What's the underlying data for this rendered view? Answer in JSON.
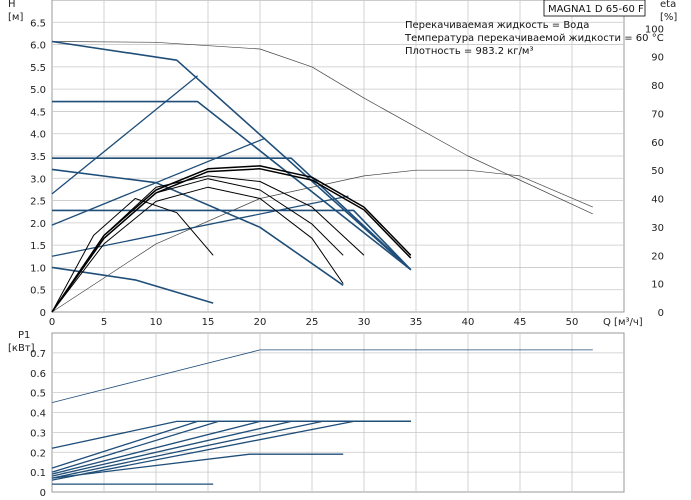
{
  "chart_data": [
    {
      "type": "line",
      "model_label": "MAGNA1 D 65-60 F",
      "info": [
        "Перекачиваемая жидкость = Вода",
        "Температура перекачиваемой жидкости = 60 °C",
        "Плотность = 983.2 кг/м³"
      ],
      "ylabel": "H",
      "yunit": "[м]",
      "y2label": "eta",
      "y2unit": "[%]",
      "xlabel": "Q [м³/ч]",
      "xlim": [
        0,
        55
      ],
      "ylim": [
        0,
        7.0
      ],
      "y2lim": [
        0,
        110
      ],
      "xticks": [
        "0",
        "5",
        "10",
        "15",
        "20",
        "25",
        "30",
        "35",
        "40",
        "45",
        "50"
      ],
      "yticks": [
        "0",
        "0.5",
        "1.0",
        "1.5",
        "2.0",
        "2.5",
        "3.0",
        "3.5",
        "4.0",
        "4.5",
        "5.0",
        "5.5",
        "6.0",
        "6.5"
      ],
      "y2ticks": [
        "0",
        "10",
        "20",
        "30",
        "40",
        "50",
        "60",
        "70",
        "80",
        "90",
        "100"
      ],
      "grid": true,
      "pump_curves": [
        {
          "x": [
            0,
            12,
            34.5
          ],
          "y": [
            6.07,
            5.65,
            0.95
          ]
        },
        {
          "x": [
            0,
            14,
            34.5
          ],
          "y": [
            4.72,
            4.72,
            0.95
          ]
        },
        {
          "x": [
            0,
            23,
            34.5
          ],
          "y": [
            3.45,
            3.45,
            0.95
          ]
        },
        {
          "x": [
            0,
            29,
            34.5
          ],
          "y": [
            2.28,
            2.28,
            0.95
          ]
        },
        {
          "x": [
            0,
            10,
            20,
            28
          ],
          "y": [
            3.2,
            2.9,
            1.9,
            0.6
          ]
        },
        {
          "x": [
            0,
            8,
            15.5
          ],
          "y": [
            1.0,
            0.72,
            0.2
          ]
        }
      ],
      "system_curves": [
        {
          "x": [
            0,
            14
          ],
          "y": [
            2.65,
            5.3
          ]
        },
        {
          "x": [
            0,
            20.5
          ],
          "y": [
            1.95,
            3.9
          ]
        },
        {
          "x": [
            0,
            28.5
          ],
          "y": [
            1.25,
            2.6
          ]
        }
      ],
      "eta_curves": [
        {
          "x": [
            0,
            5,
            10,
            15,
            20,
            25,
            30,
            34.5
          ],
          "y": [
            0,
            27,
            43,
            50.5,
            51.5,
            47.5,
            37,
            20
          ]
        },
        {
          "x": [
            0,
            5,
            10,
            15,
            20,
            25,
            30,
            34.5
          ],
          "y": [
            0,
            26,
            42,
            49.5,
            50.5,
            46.5,
            36,
            19
          ]
        },
        {
          "x": [
            0,
            5,
            10,
            15,
            20,
            25,
            30
          ],
          "y": [
            0,
            27,
            44,
            48,
            46,
            37,
            20
          ]
        },
        {
          "x": [
            0,
            5,
            10,
            15,
            20,
            25,
            28
          ],
          "y": [
            0,
            26,
            42,
            47,
            43,
            31,
            20
          ]
        },
        {
          "x": [
            0,
            5,
            10,
            15,
            20,
            25,
            28
          ],
          "y": [
            0,
            24,
            39,
            44,
            40,
            26,
            10
          ]
        },
        {
          "x": [
            0,
            4,
            8,
            12,
            15.5
          ],
          "y": [
            0,
            27,
            40,
            35,
            20
          ]
        }
      ],
      "max_head_thin": {
        "x": [
          0,
          10,
          20,
          25,
          30,
          40,
          52
        ],
        "y": [
          6.07,
          6.05,
          5.9,
          5.5,
          4.8,
          3.5,
          2.2
        ]
      },
      "max_eta_thin": {
        "x": [
          0,
          10,
          20,
          30,
          35,
          40,
          45,
          52
        ],
        "y": [
          0,
          24,
          40,
          48,
          50,
          50,
          48,
          37
        ]
      }
    },
    {
      "type": "line",
      "ylabel": "P1",
      "yunit": "[кВт]",
      "ylim": [
        0,
        0.8
      ],
      "yticks": [
        "0",
        "0.1",
        "0.2",
        "0.3",
        "0.4",
        "0.5",
        "0.6",
        "0.7"
      ],
      "xlim": [
        0,
        55
      ],
      "grid": true,
      "power_curves": [
        {
          "x": [
            0,
            12,
            34.5
          ],
          "y": [
            0.22,
            0.355,
            0.355
          ]
        },
        {
          "x": [
            0,
            14,
            34.5
          ],
          "y": [
            0.12,
            0.355,
            0.355
          ]
        },
        {
          "x": [
            0,
            16,
            34.5
          ],
          "y": [
            0.1,
            0.355,
            0.355
          ]
        },
        {
          "x": [
            0,
            20,
            34.5
          ],
          "y": [
            0.09,
            0.355,
            0.355
          ]
        },
        {
          "x": [
            0,
            23,
            34.5
          ],
          "y": [
            0.08,
            0.355,
            0.355
          ]
        },
        {
          "x": [
            0,
            26,
            34.5
          ],
          "y": [
            0.07,
            0.355,
            0.355
          ]
        },
        {
          "x": [
            0,
            29,
            34.5
          ],
          "y": [
            0.06,
            0.355,
            0.355
          ]
        },
        {
          "x": [
            0,
            19,
            28
          ],
          "y": [
            0.07,
            0.19,
            0.19
          ]
        },
        {
          "x": [
            0,
            10,
            15.5
          ],
          "y": [
            0.04,
            0.04,
            0.04
          ]
        }
      ],
      "max_power_thin": {
        "x": [
          0,
          20,
          52
        ],
        "y": [
          0.45,
          0.715,
          0.715
        ]
      }
    }
  ]
}
